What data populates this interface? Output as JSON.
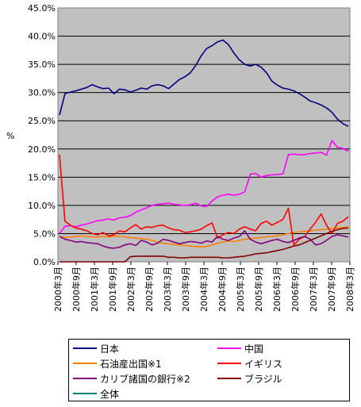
{
  "chart_data": {
    "type": "line",
    "ylabel": "%",
    "ylim": [
      0,
      45
    ],
    "ytick_labels": [
      "0.0%",
      "5.0%",
      "10.0%",
      "15.0%",
      "20.0%",
      "25.0%",
      "30.0%",
      "35.0%",
      "40.0%",
      "45.0%"
    ],
    "grid": true,
    "legend_position": "bottom",
    "x_tick_labels": [
      "2000年3月",
      "2000年9月",
      "2001年3月",
      "2001年9月",
      "2002年3月",
      "2002年9月",
      "2003年3月",
      "2003年9月",
      "2004年3月",
      "2004年9月",
      "2005年3月",
      "2005年9月",
      "2006年3月",
      "2006年9月",
      "2007年3月",
      "2007年9月",
      "2008年3月"
    ],
    "x_start": "2000年3月",
    "x_end": "2008年3月",
    "series": [
      {
        "name": "日本",
        "color": "#000080",
        "values": [
          26,
          29.8,
          30.1,
          30.3,
          30.6,
          30.9,
          31.4,
          31,
          30.7,
          30.8,
          29.8,
          30.6,
          30.5,
          30.1,
          30.4,
          30.8,
          30.6,
          31.2,
          31.4,
          31.2,
          30.7,
          31.5,
          32.3,
          32.8,
          33.5,
          34.8,
          36.5,
          37.8,
          38.3,
          39,
          39.3,
          38.5,
          37,
          35.8,
          35,
          34.7,
          35,
          34.5,
          33.5,
          32,
          31.3,
          30.8,
          30.6,
          30.3,
          29.8,
          29.2,
          28.5,
          28.2,
          27.8,
          27.3,
          26.5,
          25.3,
          24.5,
          24
        ]
      },
      {
        "name": "中国",
        "color": "#ff00ff",
        "values": [
          5,
          6.3,
          6.4,
          6.2,
          6.5,
          6.7,
          7,
          7.3,
          7.4,
          7.6,
          7.4,
          7.8,
          7.9,
          8.2,
          8.8,
          9.2,
          9.6,
          10,
          10.2,
          10.3,
          10.4,
          10.2,
          10.1,
          10,
          10.1,
          10.4,
          9.9,
          9.8,
          10.8,
          11.5,
          11.8,
          12,
          11.8,
          12,
          12.4,
          15.5,
          15.7,
          15,
          15.3,
          15.4,
          15.5,
          15.6,
          19,
          19.1,
          19,
          19,
          19.2,
          19.3,
          19.4,
          18.9,
          21.5,
          20.3,
          20.1,
          19.6
        ]
      },
      {
        "name": "石油産出国※1",
        "color": "#ff8000",
        "values": [
          4.5,
          4.3,
          4.4,
          4.5,
          4.6,
          4.5,
          4.4,
          4.4,
          4.5,
          4.4,
          4.6,
          4.5,
          4.4,
          4.3,
          4.2,
          4.1,
          4,
          3.8,
          3.5,
          3.3,
          3.2,
          3.1,
          3,
          2.9,
          2.8,
          2.7,
          2.7,
          2.7,
          3,
          3.3,
          3.5,
          3.7,
          3.6,
          3.8,
          4,
          4.1,
          4.2,
          4.3,
          4.4,
          4.5,
          4.6,
          4.8,
          5,
          5.2,
          5.3,
          5.4,
          5.5,
          5.6,
          5.7,
          5.8,
          5.9,
          6,
          6.1,
          6.2
        ]
      },
      {
        "name": "イギリス",
        "color": "#ff0000",
        "values": [
          19,
          7.2,
          6.5,
          6,
          5.8,
          5.5,
          5,
          4.8,
          5.2,
          4.6,
          4.8,
          5.5,
          5.3,
          6,
          6.6,
          5.8,
          6.2,
          6.1,
          6.4,
          6.5,
          6,
          5.7,
          5.6,
          5.2,
          5.3,
          5.5,
          5.8,
          6.4,
          6.9,
          4.2,
          4.8,
          5.2,
          5,
          5.8,
          6.2,
          5.8,
          5.5,
          6.8,
          7.2,
          6.5,
          7,
          7.5,
          9.5,
          3,
          4,
          4.5,
          5.8,
          7,
          8.5,
          6.5,
          5,
          6.8,
          7.2,
          8
        ]
      },
      {
        "name": "カリブ諸国の銀行※2",
        "color": "#800080",
        "values": [
          4.5,
          4,
          3.8,
          3.5,
          3.6,
          3.4,
          3.3,
          3.2,
          2.8,
          2.5,
          2.4,
          2.6,
          3,
          3.2,
          2.9,
          3.8,
          3.5,
          3,
          3.3,
          4,
          3.8,
          3.5,
          3.2,
          3.4,
          3.6,
          3.5,
          3.3,
          3.7,
          3.5,
          4.5,
          4,
          3.8,
          4.2,
          4.5,
          5.5,
          4,
          3.5,
          3.2,
          3.5,
          3.8,
          4,
          3.6,
          3.4,
          3.8,
          4.2,
          4.5,
          4,
          3,
          3.2,
          3.8,
          4.5,
          4.8,
          4.6,
          4.4
        ]
      },
      {
        "name": "ブラジル",
        "color": "#800000",
        "values": [
          0,
          0,
          0,
          0,
          0,
          0,
          0,
          0,
          0,
          0,
          0,
          0,
          0,
          0.9,
          1,
          1,
          1,
          1,
          1,
          1,
          0.8,
          0.8,
          0.7,
          0.7,
          0.8,
          0.8,
          0.8,
          0.8,
          0.8,
          0.8,
          0.7,
          0.7,
          0.8,
          0.9,
          1,
          1.2,
          1.4,
          1.5,
          1.6,
          1.8,
          2,
          2.2,
          2.5,
          2.8,
          3,
          3.4,
          3.8,
          4.2,
          4.6,
          5,
          5.4,
          5.7,
          5.9,
          6
        ]
      },
      {
        "name": "全体",
        "color": "#008080",
        "values": []
      }
    ]
  }
}
